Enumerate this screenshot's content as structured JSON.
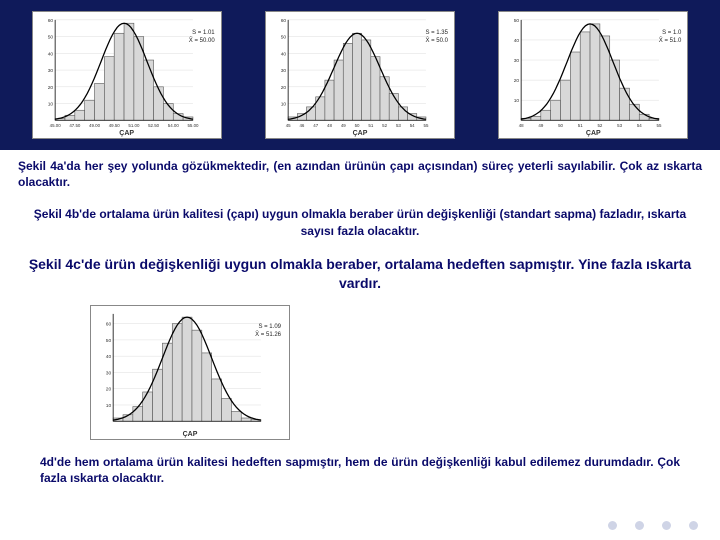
{
  "background": {
    "top_band_color": "#0f1a5a",
    "page_color": "#ffffff"
  },
  "charts": {
    "a": {
      "bar_color": "#d8d8d8",
      "bar_stroke": "#555555",
      "curve_color": "#000000",
      "bins": [
        1,
        3,
        6,
        12,
        22,
        38,
        52,
        58,
        50,
        36,
        20,
        10,
        4,
        2
      ],
      "ymax": 60,
      "xticks": [
        "45.00",
        "47.50",
        "49.00",
        "49.50",
        "51.00",
        "52.50",
        "54.00",
        "55.00"
      ],
      "yticks": [
        "10",
        "20",
        "30",
        "40",
        "50",
        "60"
      ],
      "xlabel": "ÇAP",
      "stat1": "S = 1.01",
      "stat2": "X̄ = 50.00"
    },
    "b": {
      "bar_color": "#d8d8d8",
      "bar_stroke": "#555555",
      "curve_color": "#000000",
      "bins": [
        2,
        4,
        8,
        14,
        24,
        36,
        46,
        52,
        48,
        38,
        26,
        16,
        8,
        4,
        2
      ],
      "ymax": 60,
      "xticks": [
        "45",
        "46",
        "47",
        "48",
        "49",
        "50",
        "51",
        "52",
        "53",
        "54",
        "55"
      ],
      "yticks": [
        "10",
        "20",
        "30",
        "40",
        "50",
        "60"
      ],
      "xlabel": "ÇAP",
      "stat1": "S = 1.35",
      "stat2": "X̄ = 50.0"
    },
    "c": {
      "bar_color": "#d8d8d8",
      "bar_stroke": "#555555",
      "curve_color": "#000000",
      "bins": [
        1,
        2,
        5,
        10,
        20,
        34,
        44,
        48,
        42,
        30,
        16,
        8,
        3,
        1
      ],
      "ymax": 50,
      "xticks": [
        "48",
        "49",
        "50",
        "51",
        "52",
        "53",
        "54",
        "55"
      ],
      "yticks": [
        "10",
        "20",
        "30",
        "40",
        "50"
      ],
      "xlabel": "ÇAP",
      "stat1": "S = 1.0",
      "stat2": "X̄ = 51.0"
    },
    "d": {
      "bar_color": "#d8d8d8",
      "bar_stroke": "#555555",
      "curve_color": "#000000",
      "bins": [
        2,
        4,
        9,
        18,
        32,
        48,
        60,
        64,
        56,
        42,
        26,
        14,
        6,
        2,
        1
      ],
      "ymax": 66,
      "xticks": [
        "",
        "",
        "",
        "",
        "",
        "",
        ""
      ],
      "yticks": [
        "10",
        "20",
        "30",
        "40",
        "50",
        "60"
      ],
      "xlabel": "ÇAP",
      "stat1": "S = 1.09",
      "stat2": "X̄ = 51.26"
    }
  },
  "texts": {
    "p1": "Şekil 4a'da her şey yolunda gözükmektedir, (en azından ürünün çapı açısından) süreç yeterli sayılabilir. Çok az ıskarta olacaktır.",
    "p2": "Şekil 4b'de ortalama ürün kalitesi (çapı) uygun olmakla beraber ürün değişkenliği (standart sapma) fazladır, ıskarta sayısı fazla olacaktır.",
    "p3": "Şekil 4c'de ürün değişkenliği uygun olmakla beraber, ortalama hedeften sapmıştır. Yine fazla ıskarta vardır.",
    "p4": "4d'de hem ortalama ürün kalitesi hedeften sapmıştır, hem de ürün değişkenliği kabul edilemez durumdadır. Çok fazla ıskarta olacaktır."
  },
  "colors": {
    "text_color": "#0a0a6a",
    "dot_color": "#cfd4e6"
  },
  "typography": {
    "body_fontsize": 12,
    "emphasis_fontsize": 14
  }
}
